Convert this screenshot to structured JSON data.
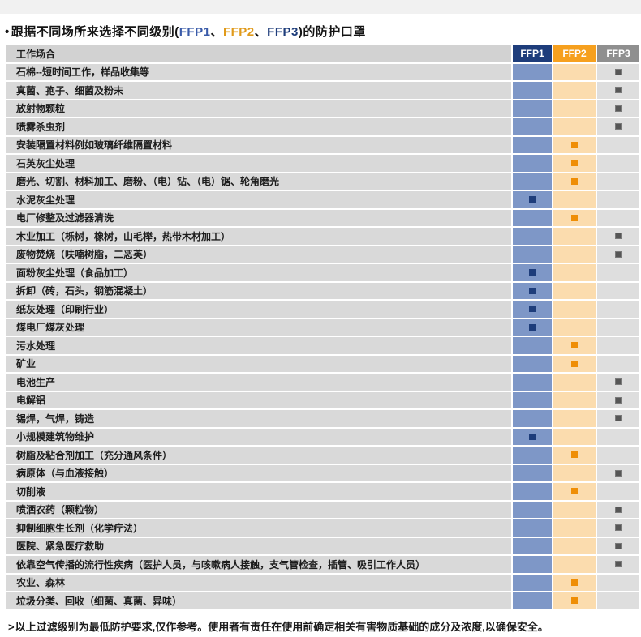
{
  "title": {
    "bullet": "•",
    "prefix": "跟据不同场所来选择不同级别(",
    "ffp1": "FFP1",
    "sep1": "、",
    "ffp2": "FFP2",
    "sep2": "、",
    "ffp3": "FFP3",
    "suffix": ")的防护口罩"
  },
  "table": {
    "header": {
      "label": "工作场合",
      "ffp1": "FFP1",
      "ffp2": "FFP2",
      "ffp3": "FFP3"
    },
    "rows": [
      {
        "label": "石棉--短时间工作，样品收集等",
        "level": "ffp3"
      },
      {
        "label": "真菌、孢子、细菌及粉末",
        "level": "ffp3"
      },
      {
        "label": "放射物颗粒",
        "level": "ffp3"
      },
      {
        "label": "喷雾杀虫剂",
        "level": "ffp3"
      },
      {
        "label": "安装隔置材料例如玻璃纤维隔置材料",
        "level": "ffp2"
      },
      {
        "label": "石英灰尘处理",
        "level": "ffp2"
      },
      {
        "label": "磨光、切割、材料加工、磨粉、（电）钻、（电）锯、轮角磨光",
        "level": "ffp2"
      },
      {
        "label": "水泥灰尘处理",
        "level": "ffp1"
      },
      {
        "label": "电厂修整及过滤器清洗",
        "level": "ffp2"
      },
      {
        "label": "木业加工（栎树，橡树，山毛榉，热带木材加工）",
        "level": "ffp3"
      },
      {
        "label": "废物焚烧（呋喃树脂，二恶英）",
        "level": "ffp3"
      },
      {
        "label": "面粉灰尘处理（食品加工）",
        "level": "ffp1"
      },
      {
        "label": "拆卸（砖，石头，钢筋混凝土）",
        "level": "ffp1"
      },
      {
        "label": "纸灰处理（印刷行业）",
        "level": "ffp1"
      },
      {
        "label": "煤电厂煤灰处理",
        "level": "ffp1"
      },
      {
        "label": "污水处理",
        "level": "ffp2"
      },
      {
        "label": "矿业",
        "level": "ffp2"
      },
      {
        "label": "电池生产",
        "level": "ffp3"
      },
      {
        "label": "电解铝",
        "level": "ffp3"
      },
      {
        "label": "锡焊，气焊，铸造",
        "level": "ffp3"
      },
      {
        "label": "小规模建筑物维护",
        "level": "ffp1"
      },
      {
        "label": "树脂及粘合剂加工（充分通风条件）",
        "level": "ffp2"
      },
      {
        "label": "病原体（与血液接触）",
        "level": "ffp3"
      },
      {
        "label": "切削液",
        "level": "ffp2"
      },
      {
        "label": "喷洒农药（颗粒物）",
        "level": "ffp3"
      },
      {
        "label": "抑制细胞生长剂（化学疗法）",
        "level": "ffp3"
      },
      {
        "label": "医院、紧急医疗救助",
        "level": "ffp3"
      },
      {
        "label": "依靠空气传播的流行性疾病（医护人员，与咳嗽病人接触，支气管检查，插管、吸引工作人员）",
        "level": "ffp3"
      },
      {
        "label": "农业、森林",
        "level": "ffp2"
      },
      {
        "label": "垃圾分类、回收（细菌、真菌、异味）",
        "level": "ffp2"
      }
    ]
  },
  "footer": {
    "marker": ">",
    "text": "以上过滤级别为最低防护要求,仅作参考。使用者有责任在使用前确定相关有害物质基础的成分及浓度,以确保安全。"
  },
  "colors": {
    "navy": "#1e3d7b",
    "blue_text": "#3a5ba9",
    "orange_text": "#e09a1a",
    "orange_head": "#f6a01e",
    "orange_marker": "#ef8e05",
    "gray_head": "#8f8f8f",
    "blue_body": "#7e97c7",
    "peach_body": "#fbdcae",
    "gray_body": "#dedede",
    "row_bg": "#d9d9d9",
    "head_bg": "#d2d2d2",
    "gray_marker": "#565656"
  }
}
